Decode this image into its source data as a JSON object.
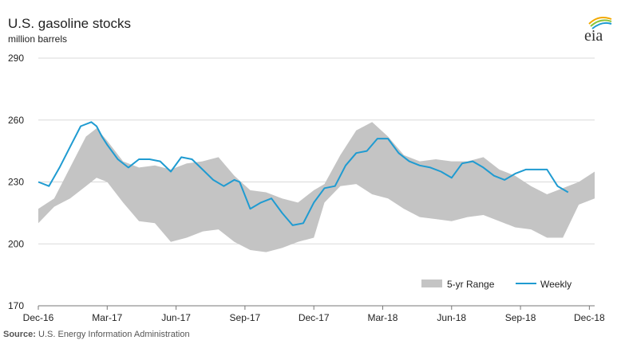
{
  "title": "U.S. gasoline stocks",
  "subtitle": "million barrels",
  "logo_text": "eia",
  "source_label": "Source:",
  "source_text": "U.S. Energy Information Administration",
  "colors": {
    "weekly": "#1f9bd1",
    "range": "#c4c4c4",
    "grid": "#d9d9d9",
    "axis": "#777777"
  },
  "chart_data": {
    "type": "area",
    "xlabel": "",
    "ylabel": "million barrels",
    "ylim": [
      170,
      290
    ],
    "yticks": [
      170,
      200,
      230,
      260,
      290
    ],
    "grid": true,
    "legend_position": "bottom-right",
    "xlim": [
      0,
      105
    ],
    "xticks": [
      {
        "label": "Dec-16",
        "week": 0
      },
      {
        "label": "Mar-17",
        "week": 13
      },
      {
        "label": "Jun-17",
        "week": 26
      },
      {
        "label": "Sep-17",
        "week": 39
      },
      {
        "label": "Dec-17",
        "week": 52
      },
      {
        "label": "Mar-18",
        "week": 65
      },
      {
        "label": "Jun-18",
        "week": 78
      },
      {
        "label": "Sep-18",
        "week": 91
      },
      {
        "label": "Dec-18",
        "week": 104
      }
    ],
    "series": [
      {
        "name": "5-yr Range",
        "kind": "band",
        "x": [
          0,
          3,
          6,
          9,
          11,
          13,
          16,
          19,
          22,
          25,
          28,
          31,
          34,
          37,
          40,
          43,
          46,
          49,
          52,
          54,
          57,
          60,
          63,
          66,
          69,
          72,
          75,
          78,
          81,
          84,
          87,
          90,
          93,
          96,
          99,
          102,
          105
        ],
        "upper": [
          217,
          222,
          237,
          252,
          256,
          250,
          240,
          237,
          238,
          236,
          239,
          240,
          242,
          233,
          226,
          225,
          222,
          220,
          226,
          229,
          243,
          255,
          259,
          252,
          243,
          240,
          241,
          240,
          240,
          242,
          236,
          233,
          228,
          224,
          227,
          230,
          235
        ],
        "lower": [
          210,
          218,
          222,
          228,
          232,
          230,
          220,
          211,
          210,
          201,
          203,
          206,
          207,
          201,
          197,
          196,
          198,
          201,
          203,
          220,
          228,
          229,
          224,
          222,
          217,
          213,
          212,
          211,
          213,
          214,
          211,
          208,
          207,
          203,
          203,
          219,
          222
        ]
      },
      {
        "name": "Weekly",
        "kind": "line",
        "x": [
          0,
          2,
          4,
          6,
          8,
          10,
          11,
          12,
          13,
          15,
          17,
          19,
          21,
          23,
          25,
          27,
          29,
          31,
          33,
          35,
          37,
          38,
          40,
          42,
          44,
          46,
          48,
          50,
          52,
          54,
          56,
          58,
          60,
          62,
          64,
          66,
          68,
          70,
          72,
          74,
          76,
          78,
          80,
          82,
          84,
          86,
          88,
          90,
          92,
          94,
          96,
          98,
          100
        ],
        "y": [
          230,
          228,
          237,
          247,
          257,
          259,
          257,
          252,
          248,
          241,
          237,
          241,
          241,
          240,
          235,
          242,
          241,
          236,
          231,
          228,
          231,
          230,
          217,
          220,
          222,
          215,
          209,
          210,
          220,
          227,
          228,
          238,
          244,
          245,
          251,
          251,
          244,
          240,
          238,
          237,
          235,
          232,
          239,
          240,
          237,
          233,
          231,
          234,
          236,
          236,
          236,
          228,
          225
        ]
      }
    ]
  }
}
